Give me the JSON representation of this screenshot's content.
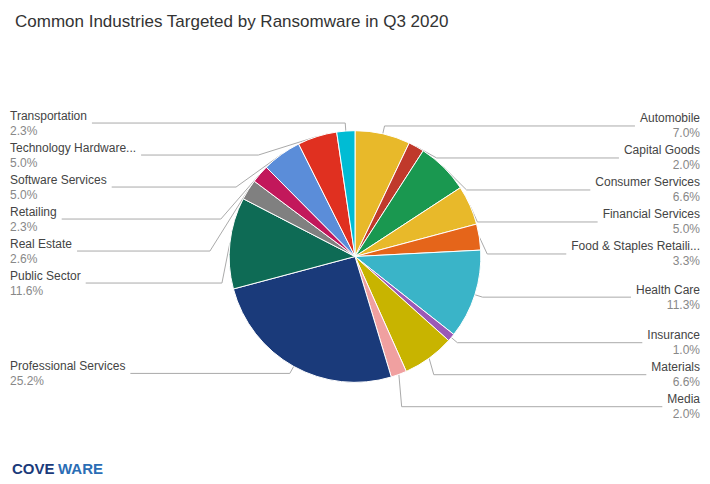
{
  "chart_data": {
    "type": "pie",
    "title": "Common Industries Targeted by Ransomware in Q3 2020",
    "categories": [
      "Automobile",
      "Capital Goods",
      "Consumer Services",
      "Financial Services",
      "Food & Staples Retaili...",
      "Health Care",
      "Insurance",
      "Materials",
      "Media",
      "Professional Services",
      "Public Sector",
      "Real Estate",
      "Retailing",
      "Software Services",
      "Technology Hardware...",
      "Transportation"
    ],
    "values": [
      7.0,
      2.0,
      6.6,
      5.0,
      3.3,
      11.3,
      1.0,
      6.6,
      2.0,
      25.2,
      11.6,
      2.6,
      2.3,
      5.0,
      5.0,
      2.3
    ],
    "value_labels": [
      "7.0%",
      "2.0%",
      "6.6%",
      "5.0%",
      "3.3%",
      "11.3%",
      "1.0%",
      "6.6%",
      "2.0%",
      "25.2%",
      "11.6%",
      "2.6%",
      "2.3%",
      "5.0%",
      "5.0%",
      "2.3%"
    ],
    "colors": [
      "#e8b92a",
      "#c0392b",
      "#1a9850",
      "#e8b92a",
      "#e5651a",
      "#3ab4c8",
      "#9b59b6",
      "#c8b400",
      "#f0a0a0",
      "#1a3a7a",
      "#0e6b55",
      "#808080",
      "#c2185b",
      "#5b8dd9",
      "#e03020",
      "#00bcd4"
    ],
    "data_labels": true,
    "annotations": [
      {
        "text": "COVE",
        "color": "#1a3a7a"
      },
      {
        "text": "WARE",
        "color": "#2a6db5"
      }
    ]
  }
}
